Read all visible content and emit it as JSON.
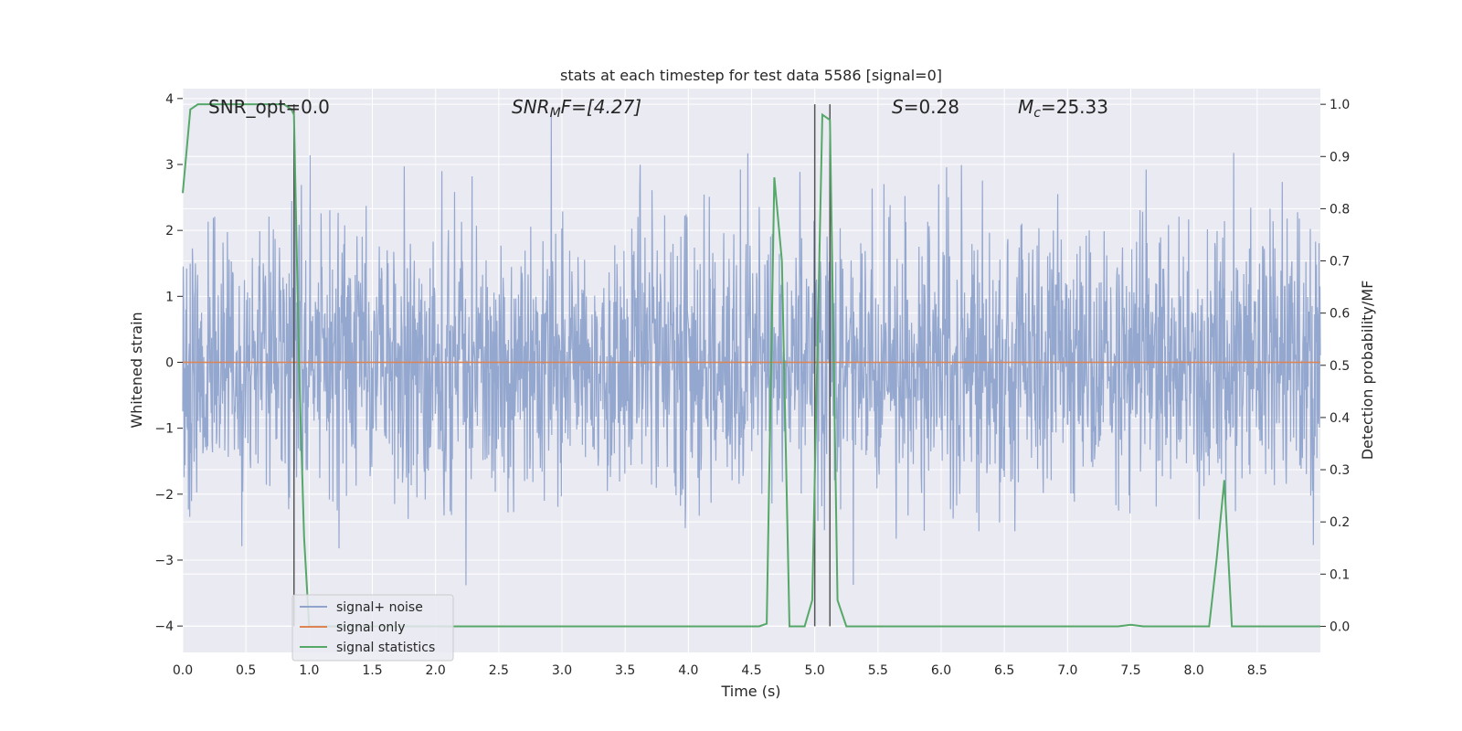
{
  "chart_data": {
    "type": "line",
    "title": "stats at each timestep for test data 5586 [signal=0]",
    "xlabel": "Time (s)",
    "ylabel": "Whitened strain",
    "ylabel_right": "Detection probability/MF",
    "xlim": [
      0.0,
      9.0
    ],
    "ylim_left": [
      -4.4,
      4.15
    ],
    "ylim_right": [
      -0.05,
      1.03
    ],
    "x_ticks": [
      "0.0",
      "0.5",
      "1.0",
      "1.5",
      "2.0",
      "2.5",
      "3.0",
      "3.5",
      "4.0",
      "4.5",
      "5.0",
      "5.5",
      "6.0",
      "6.5",
      "7.0",
      "7.5",
      "8.0",
      "8.5"
    ],
    "y_ticks_left": [
      "−4",
      "−3",
      "−2",
      "−1",
      "0",
      "1",
      "2",
      "3",
      "4"
    ],
    "y_ticks_right": [
      "0.0",
      "0.1",
      "0.2",
      "0.3",
      "0.4",
      "0.5",
      "0.6",
      "0.7",
      "0.8",
      "0.9",
      "1.0"
    ],
    "annotations": {
      "snr_opt": "SNR_opt=0.0",
      "snr_mf_base": "SNR",
      "snr_mf_sub": "M",
      "snr_mf_rest": "F=[4.27]",
      "s_base": "S",
      "s_rest": "=0.28",
      "mc_base": "M",
      "mc_sub": "c",
      "mc_rest": "=25.33"
    },
    "legend": {
      "position": "lower-left",
      "items": [
        "signal+ noise",
        "signal only",
        "signal statistics"
      ]
    },
    "colors": {
      "noise": "#8fa3cc",
      "signal_only": "#dd8452",
      "statistics": "#55a868",
      "vlines": "#555555",
      "plot_bg": "#eaeaf2",
      "grid": "#ffffff"
    },
    "vertical_lines_x": [
      0.88,
      5.0,
      5.12
    ],
    "series": [
      {
        "name": "signal+ noise",
        "axis": "left",
        "description_range": [
          -4.0,
          3.8
        ],
        "sample_rate": 2048
      },
      {
        "name": "signal only",
        "axis": "left",
        "value": 0.0
      },
      {
        "name": "signal statistics",
        "axis": "right",
        "x": [
          0.0,
          0.06,
          0.12,
          0.2,
          0.5,
          0.8,
          0.86,
          0.88,
          0.92,
          0.96,
          1.0,
          1.5,
          2.0,
          2.5,
          3.0,
          3.5,
          4.0,
          4.5,
          4.56,
          4.62,
          4.68,
          4.74,
          4.8,
          4.86,
          4.92,
          4.98,
          5.06,
          5.12,
          5.18,
          5.25,
          5.5,
          6.0,
          6.5,
          7.0,
          7.4,
          7.5,
          7.6,
          8.0,
          8.12,
          8.18,
          8.24,
          8.3,
          8.5,
          9.0
        ],
        "y": [
          0.83,
          0.99,
          1.0,
          1.0,
          1.0,
          1.0,
          0.99,
          0.98,
          0.5,
          0.17,
          0.0,
          0.0,
          0.0,
          0.0,
          0.0,
          0.0,
          0.0,
          0.0,
          0.0,
          0.005,
          0.86,
          0.7,
          0.0,
          0.0,
          0.0,
          0.05,
          0.98,
          0.97,
          0.05,
          0.0,
          0.0,
          0.0,
          0.0,
          0.0,
          0.0,
          0.003,
          0.0,
          0.0,
          0.0,
          0.13,
          0.28,
          0.0,
          0.0,
          0.0
        ]
      }
    ]
  }
}
